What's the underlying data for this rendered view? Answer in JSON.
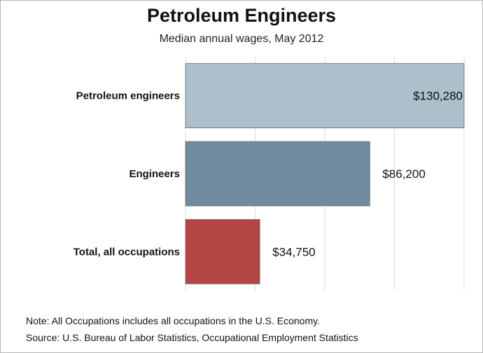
{
  "chart_data": {
    "type": "bar",
    "orientation": "horizontal",
    "title": "Petroleum Engineers",
    "subtitle": "Median annual wages, May 2012",
    "categories": [
      "Petroleum engineers",
      "Engineers",
      "Total, all occupations"
    ],
    "values": [
      130280,
      86200,
      34750
    ],
    "value_labels": [
      "$130,280",
      "$86,200",
      "$34,750"
    ],
    "colors": [
      "#adbfcb",
      "#6f8ba0",
      "#b54545"
    ],
    "xlim": [
      0,
      130280
    ],
    "grid": true,
    "xlabel": "",
    "ylabel": ""
  },
  "footer": {
    "note": "Note: All Occupations includes all occupations in the U.S. Economy.",
    "source": "Source: U.S. Bureau of Labor Statistics, Occupational Employment Statistics"
  }
}
